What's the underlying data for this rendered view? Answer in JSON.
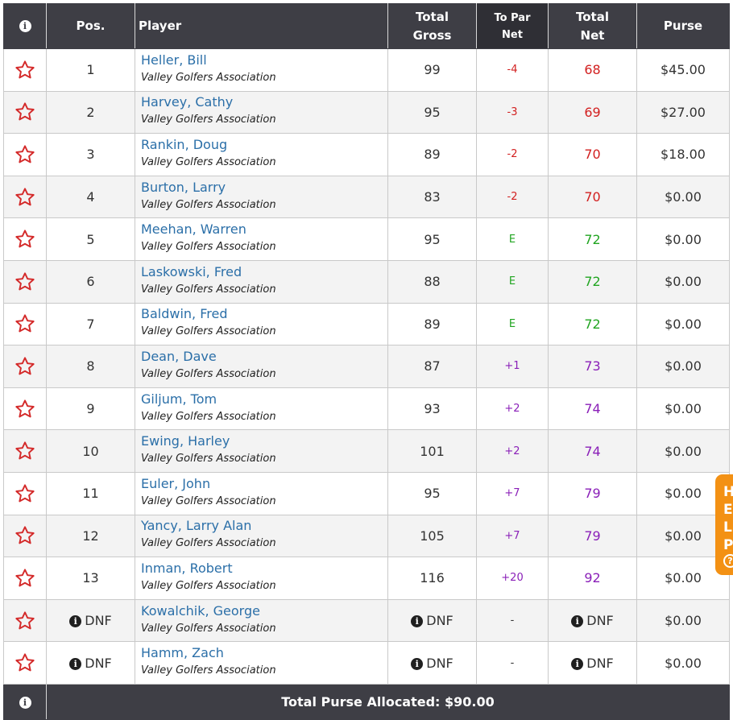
{
  "header": {
    "info_glyph": "i",
    "pos": "Pos.",
    "player": "Player",
    "total_gross_1": "Total",
    "total_gross_2": "Gross",
    "to_par_1": "To Par",
    "to_par_2": "Net",
    "total_net_1": "Total",
    "total_net_2": "Net",
    "purse": "Purse"
  },
  "rows": [
    {
      "pos": "1",
      "name": "Heller, Bill",
      "org": "Valley Golfers Association",
      "gross": "99",
      "topar": "-4",
      "net": "68",
      "purse": "$45.00"
    },
    {
      "pos": "2",
      "name": "Harvey, Cathy",
      "org": "Valley Golfers Association",
      "gross": "95",
      "topar": "-3",
      "net": "69",
      "purse": "$27.00"
    },
    {
      "pos": "3",
      "name": "Rankin, Doug",
      "org": "Valley Golfers Association",
      "gross": "89",
      "topar": "-2",
      "net": "70",
      "purse": "$18.00"
    },
    {
      "pos": "4",
      "name": "Burton, Larry",
      "org": "Valley Golfers Association",
      "gross": "83",
      "topar": "-2",
      "net": "70",
      "purse": "$0.00"
    },
    {
      "pos": "5",
      "name": "Meehan, Warren",
      "org": "Valley Golfers Association",
      "gross": "95",
      "topar": "E",
      "net": "72",
      "purse": "$0.00"
    },
    {
      "pos": "6",
      "name": "Laskowski, Fred",
      "org": "Valley Golfers Association",
      "gross": "88",
      "topar": "E",
      "net": "72",
      "purse": "$0.00"
    },
    {
      "pos": "7",
      "name": "Baldwin, Fred",
      "org": "Valley Golfers Association",
      "gross": "89",
      "topar": "E",
      "net": "72",
      "purse": "$0.00"
    },
    {
      "pos": "8",
      "name": "Dean, Dave",
      "org": "Valley Golfers Association",
      "gross": "87",
      "topar": "+1",
      "net": "73",
      "purse": "$0.00"
    },
    {
      "pos": "9",
      "name": "Giljum, Tom",
      "org": "Valley Golfers Association",
      "gross": "93",
      "topar": "+2",
      "net": "74",
      "purse": "$0.00"
    },
    {
      "pos": "10",
      "name": "Ewing, Harley",
      "org": "Valley Golfers Association",
      "gross": "101",
      "topar": "+2",
      "net": "74",
      "purse": "$0.00"
    },
    {
      "pos": "11",
      "name": "Euler, John",
      "org": "Valley Golfers Association",
      "gross": "95",
      "topar": "+7",
      "net": "79",
      "purse": "$0.00"
    },
    {
      "pos": "12",
      "name": "Yancy, Larry Alan",
      "org": "Valley Golfers Association",
      "gross": "105",
      "topar": "+7",
      "net": "79",
      "purse": "$0.00"
    },
    {
      "pos": "13",
      "name": "Inman, Robert",
      "org": "Valley Golfers Association",
      "gross": "116",
      "topar": "+20",
      "net": "92",
      "purse": "$0.00"
    },
    {
      "pos": "DNF",
      "name": "Kowalchik, George",
      "org": "Valley Golfers Association",
      "gross": "DNF",
      "topar": "-",
      "net": "DNF",
      "purse": "$0.00"
    },
    {
      "pos": "DNF",
      "name": "Hamm, Zach",
      "org": "Valley Golfers Association",
      "gross": "DNF",
      "topar": "-",
      "net": "DNF",
      "purse": "$0.00"
    }
  ],
  "footer": {
    "total_purse": "Total Purse Allocated: $90.00"
  },
  "help_tab": {
    "letters": [
      "H",
      "E",
      "L",
      "P"
    ],
    "q_glyph": "?"
  },
  "colors": {
    "under_par": "#d21f1f",
    "even_par": "#21a521",
    "over_par": "#8a1fb8",
    "link": "#2b6fa8",
    "header_bg": "#3e3e45",
    "help_bg": "#f39114"
  }
}
